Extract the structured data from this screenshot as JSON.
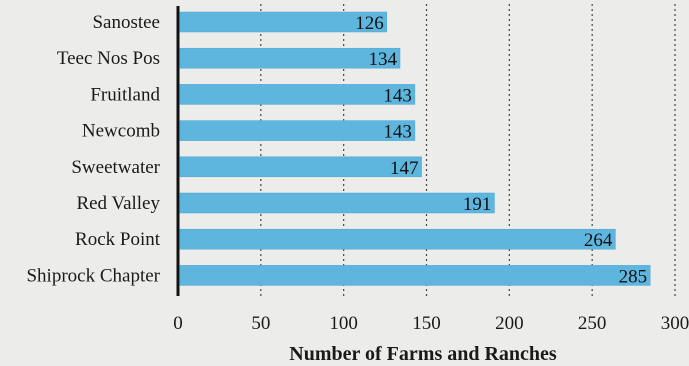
{
  "chart_data": {
    "type": "bar",
    "orientation": "horizontal",
    "categories": [
      "Sanostee",
      "Teec Nos Pos",
      "Fruitland",
      "Newcomb",
      "Sweetwater",
      "Red Valley",
      "Rock Point",
      "Shiprock Chapter"
    ],
    "values": [
      126,
      134,
      143,
      143,
      147,
      191,
      264,
      285
    ],
    "xlabel": "Number of Farms and Ranches",
    "ylabel": "",
    "title": "",
    "xlim": [
      0,
      300
    ],
    "xticks": [
      0,
      50,
      100,
      150,
      200,
      250,
      300
    ],
    "grid": "vertical dashed",
    "colors": {
      "bar": "#5eb6de",
      "axis": "#111111",
      "grid": "#444444"
    }
  }
}
